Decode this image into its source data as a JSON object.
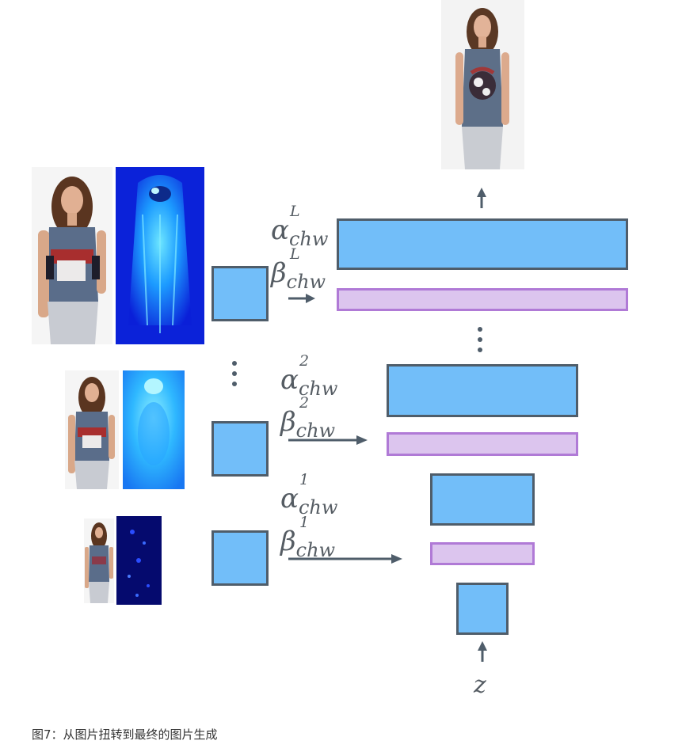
{
  "labels": {
    "alpha_L": {
      "base": "α",
      "sup": "L",
      "sub": "chw"
    },
    "beta_L": {
      "base": "β",
      "sup": "L",
      "sub": "chw"
    },
    "alpha_2": {
      "base": "α",
      "sup": "2",
      "sub": "chw"
    },
    "beta_2": {
      "base": "β",
      "sup": "2",
      "sub": "chw"
    },
    "alpha_1": {
      "base": "α",
      "sup": "1",
      "sub": "chw"
    },
    "beta_1": {
      "base": "β",
      "sup": "1",
      "sub": "chw"
    },
    "z": "z"
  },
  "caption": "图7：从图片扭转到最终的图片生成",
  "colors": {
    "feature_box": "#72bef9",
    "feature_border": "#4f5d6a",
    "modulation_bar": "#dcc5ee",
    "modulation_border": "#b07ad6",
    "arrow": "#4f5d6a"
  }
}
